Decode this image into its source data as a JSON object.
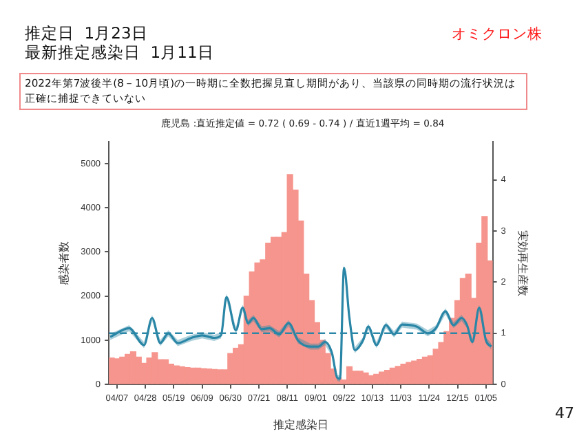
{
  "chart_data": {
    "type": "bar",
    "title": "推定日  1月23日",
    "subtitle": "最新推定感染日  1月11日",
    "annotations": [
      "オミクロン株",
      "2022年第7波後半(8－10月頃)の一時期に全数把握見直し期間があり、当該県の同時期の流行状況は正確に捕捉できていない",
      "鹿児島 :直近推定値 = 0.72 ( 0.69 - 0.74 ) / 直近1週平均 = 0.84",
      "47"
    ],
    "xlabel": "推定感染日",
    "ylabel": "感染者数",
    "y2label": "実効再生産数",
    "xlim": [
      "2022-04-01",
      "2023-01-10"
    ],
    "xticks": [
      {
        "value": "2022-04-07",
        "label": "04/07"
      },
      {
        "value": "2022-04-28",
        "label": "04/28"
      },
      {
        "value": "2022-05-19",
        "label": "05/19"
      },
      {
        "value": "2022-06-09",
        "label": "06/09"
      },
      {
        "value": "2022-06-30",
        "label": "06/30"
      },
      {
        "value": "2022-07-21",
        "label": "07/21"
      },
      {
        "value": "2022-08-11",
        "label": "08/11"
      },
      {
        "value": "2022-09-01",
        "label": "09/01"
      },
      {
        "value": "2022-09-22",
        "label": "09/22"
      },
      {
        "value": "2022-10-13",
        "label": "10/13"
      },
      {
        "value": "2022-11-03",
        "label": "11/03"
      },
      {
        "value": "2022-11-24",
        "label": "11/24"
      },
      {
        "value": "2022-12-15",
        "label": "12/15"
      },
      {
        "value": "2023-01-05",
        "label": "01/05"
      }
    ],
    "ylim": [
      0,
      5500
    ],
    "yticks": [
      0,
      1000,
      2000,
      3000,
      4000,
      5000
    ],
    "y2lim": [
      0,
      4.75
    ],
    "y2ticks": [
      0,
      1,
      2,
      3,
      4
    ],
    "grid": false,
    "legend": false,
    "marker": "none",
    "ref_lines": [
      {
        "axis": "y2",
        "value": 1,
        "color": "#2a86a6",
        "line_style": "dashed"
      }
    ],
    "series": [
      {
        "color": "#f6958d",
        "x": [
          "2022-04-03",
          "2022-04-07",
          "2022-04-11",
          "2022-04-15",
          "2022-04-19",
          "2022-04-23",
          "2022-04-27",
          "2022-05-01",
          "2022-05-05",
          "2022-05-09",
          "2022-05-13",
          "2022-05-17",
          "2022-05-21",
          "2022-05-25",
          "2022-05-29",
          "2022-06-02",
          "2022-06-06",
          "2022-06-10",
          "2022-06-14",
          "2022-06-18",
          "2022-06-22",
          "2022-06-26",
          "2022-06-30",
          "2022-07-04",
          "2022-07-08",
          "2022-07-12",
          "2022-07-16",
          "2022-07-20",
          "2022-07-24",
          "2022-07-28",
          "2022-08-01",
          "2022-08-05",
          "2022-08-09",
          "2022-08-13",
          "2022-08-17",
          "2022-08-21",
          "2022-08-25",
          "2022-08-29",
          "2022-09-02",
          "2022-09-06",
          "2022-09-10",
          "2022-09-14",
          "2022-09-18",
          "2022-09-22",
          "2022-09-26",
          "2022-09-30",
          "2022-10-04",
          "2022-10-08",
          "2022-10-12",
          "2022-10-16",
          "2022-10-20",
          "2022-10-24",
          "2022-10-28",
          "2022-11-01",
          "2022-11-05",
          "2022-11-09",
          "2022-11-13",
          "2022-11-17",
          "2022-11-21",
          "2022-11-25",
          "2022-11-29",
          "2022-12-03",
          "2022-12-07",
          "2022-12-11",
          "2022-12-15",
          "2022-12-19",
          "2022-12-23",
          "2022-12-27",
          "2022-12-31",
          "2023-01-04",
          "2023-01-08"
        ],
        "values": [
          600,
          580,
          620,
          680,
          740,
          620,
          480,
          600,
          720,
          560,
          560,
          460,
          420,
          400,
          380,
          370,
          370,
          360,
          350,
          340,
          330,
          330,
          700,
          820,
          900,
          2000,
          2550,
          2750,
          2820,
          3200,
          3330,
          3330,
          3440,
          4750,
          4400,
          3700,
          2500,
          1900,
          1400,
          1000,
          700,
          350,
          150,
          100,
          400,
          300,
          300,
          260,
          200,
          230,
          280,
          320,
          370,
          410,
          460,
          500,
          530,
          570,
          620,
          650,
          800,
          950,
          1200,
          1500,
          1900,
          2400,
          2500,
          1950,
          3200,
          3800,
          2800
        ]
      },
      {
        "type": "line",
        "axis": "y2",
        "color": "#2a86a6",
        "x": [
          "2022-04-02",
          "2022-04-16",
          "2022-04-27",
          "2022-05-03",
          "2022-05-09",
          "2022-05-15",
          "2022-05-22",
          "2022-06-01",
          "2022-06-09",
          "2022-06-18",
          "2022-06-23",
          "2022-06-27",
          "2022-07-04",
          "2022-07-09",
          "2022-07-13",
          "2022-07-17",
          "2022-07-23",
          "2022-07-29",
          "2022-08-05",
          "2022-08-12",
          "2022-08-19",
          "2022-08-28",
          "2022-09-03",
          "2022-09-08",
          "2022-09-13",
          "2022-09-17",
          "2022-09-19",
          "2022-09-22",
          "2022-09-26",
          "2022-09-30",
          "2022-10-06",
          "2022-10-10",
          "2022-10-16",
          "2022-10-23",
          "2022-10-29",
          "2022-11-04",
          "2022-11-15",
          "2022-11-23",
          "2022-11-29",
          "2022-12-06",
          "2022-12-12",
          "2022-12-18",
          "2022-12-22",
          "2022-12-26",
          "2022-12-31",
          "2023-01-05",
          "2023-01-09"
        ],
        "values": [
          0.93,
          1.1,
          0.77,
          1.3,
          0.81,
          1.0,
          0.81,
          0.91,
          0.96,
          0.91,
          0.96,
          1.71,
          1.06,
          1.5,
          1.2,
          1.3,
          1.08,
          1.1,
          0.98,
          1.2,
          0.86,
          0.74,
          0.74,
          0.83,
          0.62,
          0.13,
          0.11,
          2.28,
          1.3,
          0.67,
          0.86,
          1.13,
          0.77,
          1.16,
          0.98,
          1.17,
          1.13,
          1.0,
          1.1,
          1.43,
          1.16,
          1.3,
          1.16,
          0.83,
          1.5,
          0.86,
          0.74
        ],
        "lower": [
          0.87,
          1.04,
          0.71,
          1.24,
          0.75,
          0.94,
          0.75,
          0.85,
          0.9,
          0.85,
          0.9,
          1.65,
          1.0,
          1.44,
          1.14,
          1.24,
          1.02,
          1.04,
          0.92,
          1.14,
          0.8,
          0.68,
          0.68,
          0.77,
          0.56,
          0.07,
          0.05,
          2.22,
          1.24,
          0.61,
          0.8,
          1.07,
          0.71,
          1.1,
          0.92,
          1.11,
          1.07,
          0.94,
          1.04,
          1.37,
          1.1,
          1.24,
          1.1,
          0.77,
          1.44,
          0.8,
          0.68
        ],
        "upper": [
          0.99,
          1.16,
          0.83,
          1.36,
          0.87,
          1.06,
          0.87,
          0.97,
          1.02,
          0.97,
          1.02,
          1.77,
          1.12,
          1.56,
          1.26,
          1.36,
          1.14,
          1.16,
          1.04,
          1.26,
          0.92,
          0.8,
          0.8,
          0.89,
          0.68,
          0.19,
          0.17,
          2.34,
          1.36,
          0.73,
          0.92,
          1.19,
          0.83,
          1.22,
          1.04,
          1.23,
          1.19,
          1.06,
          1.16,
          1.49,
          1.22,
          1.36,
          1.22,
          0.89,
          1.56,
          0.92,
          0.8
        ]
      }
    ]
  }
}
